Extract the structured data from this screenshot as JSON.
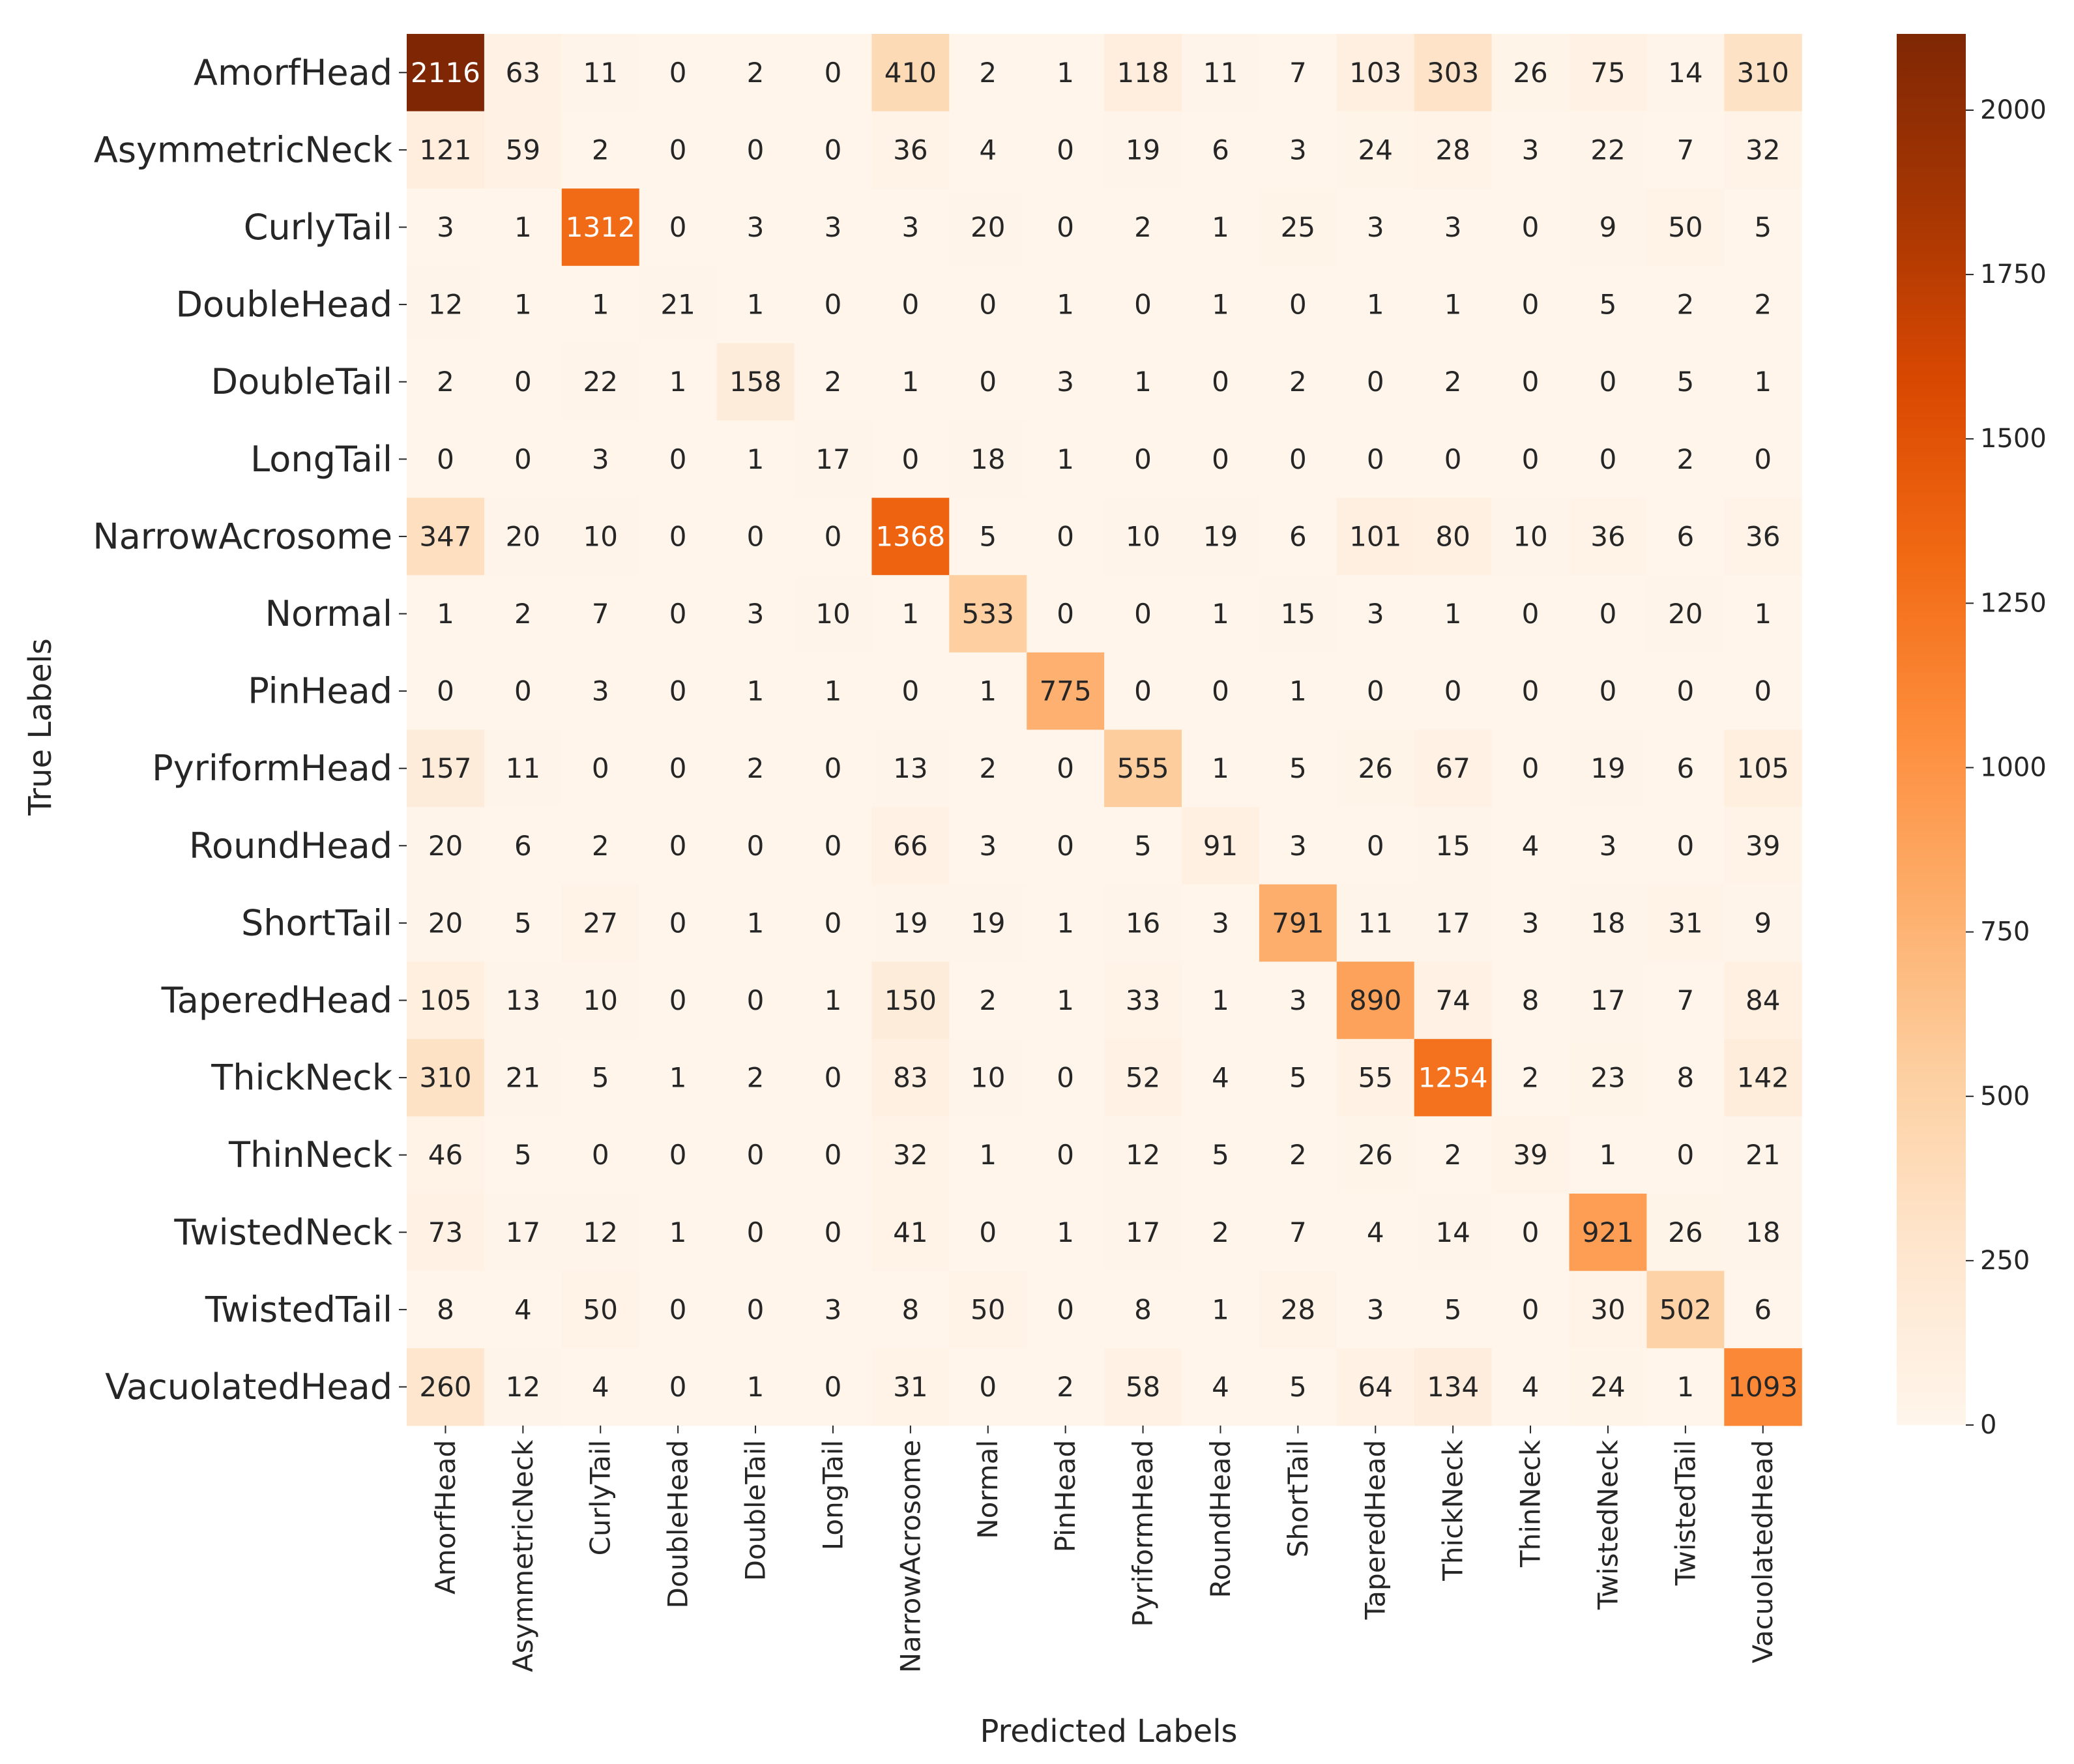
{
  "chart_data": {
    "type": "heatmap",
    "title": "",
    "xlabel": "Predicted Labels",
    "ylabel": "True Labels",
    "colormap": "Oranges",
    "color_low": "#fff5eb",
    "color_high": "#7f2704",
    "vmin": 0,
    "vmax": 2116,
    "colorbar_ticks": [
      0,
      250,
      500,
      750,
      1000,
      1250,
      1500,
      1750,
      2000
    ],
    "colorbar_tick_labels": [
      "0",
      "250",
      "500",
      "750",
      "1000",
      "1250",
      "1500",
      "1750",
      "2000"
    ],
    "x_categories": [
      "AmorfHead",
      "AsymmetricNeck",
      "CurlyTail",
      "DoubleHead",
      "DoubleTail",
      "LongTail",
      "NarrowAcrosome",
      "Normal",
      "PinHead",
      "PyriformHead",
      "RoundHead",
      "ShortTail",
      "TaperedHead",
      "ThickNeck",
      "ThinNeck",
      "TwistedNeck",
      "TwistedTail",
      "VacuolatedHead"
    ],
    "y_categories": [
      "AmorfHead",
      "AsymmetricNeck",
      "CurlyTail",
      "DoubleHead",
      "DoubleTail",
      "LongTail",
      "NarrowAcrosome",
      "Normal",
      "PinHead",
      "PyriformHead",
      "RoundHead",
      "ShortTail",
      "TaperedHead",
      "ThickNeck",
      "ThinNeck",
      "TwistedNeck",
      "TwistedTail",
      "VacuolatedHead"
    ],
    "values": [
      [
        2116,
        63,
        11,
        0,
        2,
        0,
        410,
        2,
        1,
        118,
        11,
        7,
        103,
        303,
        26,
        75,
        14,
        310
      ],
      [
        121,
        59,
        2,
        0,
        0,
        0,
        36,
        4,
        0,
        19,
        6,
        3,
        24,
        28,
        3,
        22,
        7,
        32
      ],
      [
        3,
        1,
        1312,
        0,
        3,
        3,
        3,
        20,
        0,
        2,
        1,
        25,
        3,
        3,
        0,
        9,
        50,
        5
      ],
      [
        12,
        1,
        1,
        21,
        1,
        0,
        0,
        0,
        1,
        0,
        1,
        0,
        1,
        1,
        0,
        5,
        2,
        2
      ],
      [
        2,
        0,
        22,
        1,
        158,
        2,
        1,
        0,
        3,
        1,
        0,
        2,
        0,
        2,
        0,
        0,
        5,
        1
      ],
      [
        0,
        0,
        3,
        0,
        1,
        17,
        0,
        18,
        1,
        0,
        0,
        0,
        0,
        0,
        0,
        0,
        2,
        0
      ],
      [
        347,
        20,
        10,
        0,
        0,
        0,
        1368,
        5,
        0,
        10,
        19,
        6,
        101,
        80,
        10,
        36,
        6,
        36
      ],
      [
        1,
        2,
        7,
        0,
        3,
        10,
        1,
        533,
        0,
        0,
        1,
        15,
        3,
        1,
        0,
        0,
        20,
        1
      ],
      [
        0,
        0,
        3,
        0,
        1,
        1,
        0,
        1,
        775,
        0,
        0,
        1,
        0,
        0,
        0,
        0,
        0,
        0
      ],
      [
        157,
        11,
        0,
        0,
        2,
        0,
        13,
        2,
        0,
        555,
        1,
        5,
        26,
        67,
        0,
        19,
        6,
        105
      ],
      [
        20,
        6,
        2,
        0,
        0,
        0,
        66,
        3,
        0,
        5,
        91,
        3,
        0,
        15,
        4,
        3,
        0,
        39
      ],
      [
        20,
        5,
        27,
        0,
        1,
        0,
        19,
        19,
        1,
        16,
        3,
        791,
        11,
        17,
        3,
        18,
        31,
        9
      ],
      [
        105,
        13,
        10,
        0,
        0,
        1,
        150,
        2,
        1,
        33,
        1,
        3,
        890,
        74,
        8,
        17,
        7,
        84
      ],
      [
        310,
        21,
        5,
        1,
        2,
        0,
        83,
        10,
        0,
        52,
        4,
        5,
        55,
        1254,
        2,
        23,
        8,
        142
      ],
      [
        46,
        5,
        0,
        0,
        0,
        0,
        32,
        1,
        0,
        12,
        5,
        2,
        26,
        2,
        39,
        1,
        0,
        21
      ],
      [
        73,
        17,
        12,
        1,
        0,
        0,
        41,
        0,
        1,
        17,
        2,
        7,
        4,
        14,
        0,
        921,
        26,
        18
      ],
      [
        8,
        4,
        50,
        0,
        0,
        3,
        8,
        50,
        0,
        8,
        1,
        28,
        3,
        5,
        0,
        30,
        502,
        6
      ],
      [
        260,
        12,
        4,
        0,
        1,
        0,
        31,
        0,
        2,
        58,
        4,
        5,
        64,
        134,
        4,
        24,
        1,
        1093
      ]
    ]
  }
}
